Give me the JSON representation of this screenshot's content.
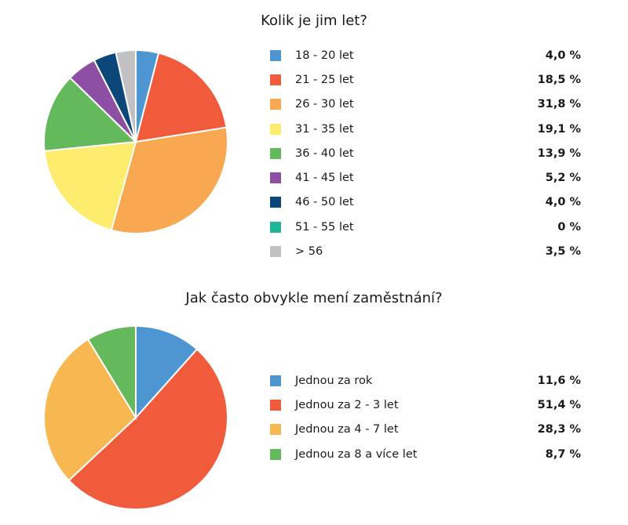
{
  "chart_data": [
    {
      "type": "pie",
      "title": "Kolik je jim let?",
      "slices": [
        {
          "label": "18 - 20 let",
          "value": 4.0,
          "value_text": "4,0 %",
          "color": "#4e96d2"
        },
        {
          "label": "21 - 25 let",
          "value": 18.5,
          "value_text": "18,5 %",
          "color": "#f05b3c"
        },
        {
          "label": "26 - 30 let",
          "value": 31.8,
          "value_text": "31,8 %",
          "color": "#f7a850"
        },
        {
          "label": "31 - 35 let",
          "value": 19.1,
          "value_text": "19,1 %",
          "color": "#fdec6e"
        },
        {
          "label": "36 - 40 let",
          "value": 13.9,
          "value_text": "13,9 %",
          "color": "#63b95b"
        },
        {
          "label": "41 - 45 let",
          "value": 5.2,
          "value_text": "5,2 %",
          "color": "#8c4fa4"
        },
        {
          "label": "46 - 50 let",
          "value": 4.0,
          "value_text": "4,0 %",
          "color": "#0b4779"
        },
        {
          "label": "51 - 55 let",
          "value": 0,
          "value_text": "0 %",
          "color": "#21b59a"
        },
        {
          "label": "> 56",
          "value": 3.5,
          "value_text": "3,5 %",
          "color": "#c1c1c4"
        }
      ],
      "legend_position": "right"
    },
    {
      "type": "pie",
      "title": "Jak často obvykle mení zaměstnání?",
      "slices": [
        {
          "label": "Jednou za rok",
          "value": 11.6,
          "value_text": "11,6 %",
          "color": "#4e96d2"
        },
        {
          "label": "Jednou za 2 - 3 let",
          "value": 51.4,
          "value_text": "51,4 %",
          "color": "#f05b3c"
        },
        {
          "label": "Jednou za 4 - 7 let",
          "value": 28.3,
          "value_text": "28,3 %",
          "color": "#f7b852"
        },
        {
          "label": "Jednou za 8 a více let",
          "value": 8.7,
          "value_text": "8,7 %",
          "color": "#63b95b"
        }
      ],
      "legend_position": "right"
    }
  ]
}
